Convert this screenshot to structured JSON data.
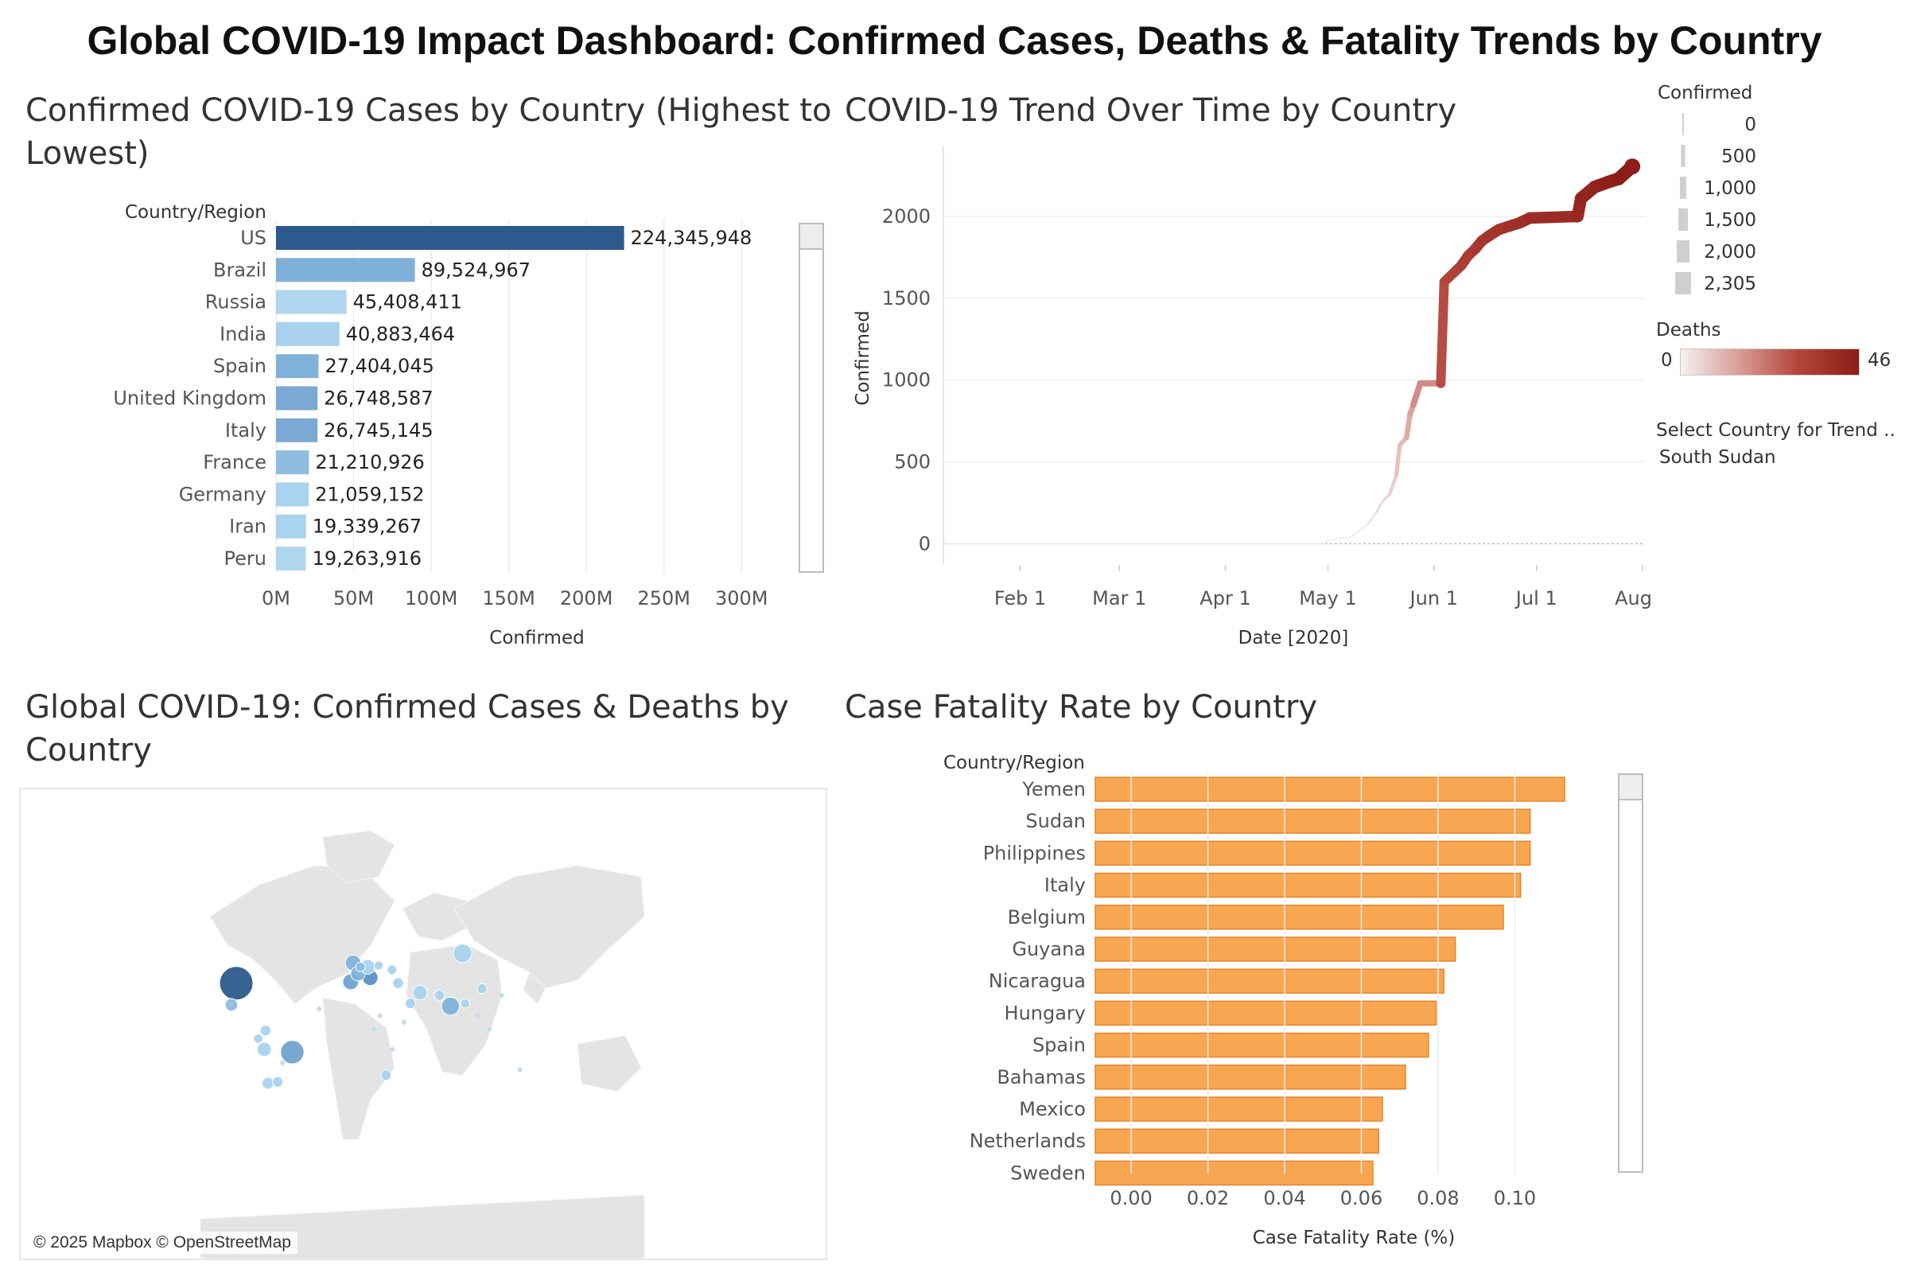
{
  "dashboard": {
    "title": "Global COVID-19 Impact Dashboard: Confirmed Cases, Deaths & Fatality Trends by Country"
  },
  "confirmed_panel": {
    "title_line1": "Confirmed COVID-19 Cases by Country (Highest to",
    "title_line2": "Lowest)"
  },
  "trend_panel": {
    "title": "COVID-19 Trend Over Time by Country"
  },
  "map_panel": {
    "title_line1": "Global COVID-19: Confirmed Cases & Deaths by",
    "title_line2": "Country",
    "attribution": "© 2025 Mapbox © OpenStreetMap",
    "bubbles": [
      {
        "lon": -98,
        "lat": 39,
        "confirmed": 224345948,
        "color": "#2d5a8c"
      },
      {
        "lon": -52,
        "lat": -12,
        "confirmed": 89524967,
        "color": "#6fa3d0"
      },
      {
        "lon": 88,
        "lat": 61,
        "confirmed": 45408411,
        "color": "#a9d3ee"
      },
      {
        "lon": 78,
        "lat": 22,
        "confirmed": 40883464,
        "color": "#7eb3dc"
      },
      {
        "lon": -4,
        "lat": 40,
        "confirmed": 27404045,
        "color": "#6fa3d0"
      },
      {
        "lon": -2,
        "lat": 54,
        "confirmed": 26748587,
        "color": "#7eb3dc"
      },
      {
        "lon": 12,
        "lat": 43,
        "confirmed": 26745145,
        "color": "#5c92c4"
      },
      {
        "lon": 2,
        "lat": 46,
        "confirmed": 21210926,
        "color": "#7eb3dc"
      },
      {
        "lon": 10,
        "lat": 51,
        "confirmed": 21059152,
        "color": "#a9d3ee"
      },
      {
        "lon": 53,
        "lat": 32,
        "confirmed": 19339267,
        "color": "#a9d3ee"
      },
      {
        "lon": -75,
        "lat": -10,
        "confirmed": 19263916,
        "color": "#a9d3ee"
      },
      {
        "lon": -102,
        "lat": 23,
        "confirmed": 12000000,
        "color": "#8dbde3"
      },
      {
        "lon": -72,
        "lat": -35,
        "confirmed": 9000000,
        "color": "#a9d3ee"
      },
      {
        "lon": -74,
        "lat": 4,
        "confirmed": 6000000,
        "color": "#a9d3ee"
      },
      {
        "lon": -64,
        "lat": -34,
        "confirmed": 5000000,
        "color": "#a9d3ee"
      },
      {
        "lon": 35,
        "lat": 39,
        "confirmed": 6000000,
        "color": "#a9d3ee"
      },
      {
        "lon": 45,
        "lat": 24,
        "confirmed": 5000000,
        "color": "#a9d3ee"
      },
      {
        "lon": 69,
        "lat": 30,
        "confirmed": 4500000,
        "color": "#a9d3ee"
      },
      {
        "lon": 25,
        "lat": -29,
        "confirmed": 5000000,
        "color": "#a9d3ee"
      },
      {
        "lon": 104,
        "lat": 35,
        "confirmed": 3500000,
        "color": "#a9d3ee"
      },
      {
        "lon": 30,
        "lat": 49,
        "confirmed": 3000000,
        "color": "#a9d3ee"
      },
      {
        "lon": -80,
        "lat": -2,
        "confirmed": 2500000,
        "color": "#a9d3ee"
      },
      {
        "lon": 4,
        "lat": 51,
        "confirmed": 3000000,
        "color": "#8dbde3"
      },
      {
        "lon": 19,
        "lat": 52,
        "confirmed": 2500000,
        "color": "#a9d3ee"
      },
      {
        "lon": 90,
        "lat": 24,
        "confirmed": 2500000,
        "color": "#a9d3ee"
      }
    ]
  },
  "cfr_panel": {
    "title": "Case Fatality Rate by Country"
  },
  "legend": {
    "size_title": "Confirmed",
    "size_labels": [
      "0",
      "500",
      "1,000",
      "1,500",
      "2,000",
      "2,305"
    ],
    "color_title": "Deaths",
    "color_min": "0",
    "color_max": "46",
    "filter_title": "Select Country for Trend ..",
    "filter_value": "South Sudan"
  },
  "colors": {
    "us_bar": "#2d5a8c",
    "bar_light": "#b0d6ef",
    "bar_mid": "#8dbde0",
    "bar_medium": "#80b1d8",
    "bar_brazil": "#7fb0d9",
    "cfr_bar": "#f8a652",
    "cfr_edge": "#e4862a",
    "trend_dark": "#8c1d18"
  },
  "chart_data": [
    {
      "id": "confirmed",
      "type": "bar",
      "orientation": "horizontal",
      "dim_label": "Country/Region",
      "xlabel": "Confirmed",
      "xlim": [
        0,
        325000000
      ],
      "xticks": [
        0,
        50000000,
        100000000,
        150000000,
        200000000,
        250000000,
        300000000
      ],
      "xtick_labels": [
        "0M",
        "50M",
        "100M",
        "150M",
        "200M",
        "250M",
        "300M"
      ],
      "categories": [
        "US",
        "Brazil",
        "Russia",
        "India",
        "Spain",
        "United Kingdom",
        "Italy",
        "France",
        "Germany",
        "Iran",
        "Peru"
      ],
      "values": [
        224345948,
        89524967,
        45408411,
        40883464,
        27404045,
        26748587,
        26745145,
        21210926,
        21059152,
        19339267,
        19263916
      ],
      "value_labels": [
        "224,345,948",
        "89,524,967",
        "45,408,411",
        "40,883,464",
        "27,404,045",
        "26,748,587",
        "26,745,145",
        "21,210,926",
        "21,059,152",
        "19,339,267",
        "19,263,916"
      ],
      "bar_colors": [
        "#2d5a8c",
        "#7fb0d9",
        "#b0d6ef",
        "#a9d1ee",
        "#80b1d8",
        "#7ba9d3",
        "#7ba9d3",
        "#8dbde0",
        "#a9d3ee",
        "#a9d3ee",
        "#b0d6ef"
      ],
      "grid": true
    },
    {
      "id": "trend",
      "type": "line",
      "xlabel": "Date [2020]",
      "ylabel": "Confirmed",
      "ylim": [
        -110,
        2350
      ],
      "yticks": [
        0,
        500,
        1000,
        1500,
        2000
      ],
      "xlim": [
        "2020-01-10",
        "2020-08-01"
      ],
      "xticks": [
        "2020-02-01",
        "2020-03-01",
        "2020-04-01",
        "2020-05-01",
        "2020-06-01",
        "2020-07-01",
        "2020-08-01"
      ],
      "xtick_labels": [
        "Feb 1",
        "Mar 1",
        "Apr 1",
        "May 1",
        "Jun 1",
        "Jul 1",
        "Aug 1"
      ],
      "zero_reference_line": true,
      "x": [
        "2020-01-10",
        "2020-04-29",
        "2020-05-01",
        "2020-05-05",
        "2020-05-08",
        "2020-05-11",
        "2020-05-13",
        "2020-05-15",
        "2020-05-17",
        "2020-05-19",
        "2020-05-21",
        "2020-05-22",
        "2020-05-24",
        "2020-05-25",
        "2020-05-26",
        "2020-05-28",
        "2020-06-03",
        "2020-06-04",
        "2020-06-05",
        "2020-06-07",
        "2020-06-09",
        "2020-06-11",
        "2020-06-13",
        "2020-06-15",
        "2020-06-17",
        "2020-06-20",
        "2020-06-23",
        "2020-06-26",
        "2020-06-29",
        "2020-07-13",
        "2020-07-14",
        "2020-07-18",
        "2020-07-22",
        "2020-07-25",
        "2020-07-29"
      ],
      "values": [
        0,
        0,
        20,
        35,
        45,
        90,
        130,
        185,
        260,
        300,
        420,
        600,
        650,
        790,
        850,
        980,
        980,
        1600,
        1620,
        1660,
        1700,
        1760,
        1800,
        1850,
        1880,
        1920,
        1940,
        1960,
        1990,
        2000,
        2110,
        2180,
        2210,
        2230,
        2305
      ],
      "deaths": [
        0,
        0,
        0,
        0,
        0,
        1,
        1,
        2,
        3,
        4,
        6,
        8,
        9,
        12,
        14,
        18,
        18,
        29,
        30,
        31,
        32,
        33,
        34,
        35,
        36,
        37,
        37,
        38,
        39,
        40,
        42,
        43,
        44,
        45,
        46
      ],
      "series_name": "South Sudan",
      "grid": true
    },
    {
      "id": "cfr",
      "type": "bar",
      "orientation": "horizontal",
      "dim_label": "Country/Region",
      "xlabel": "Case Fatality Rate (%)",
      "xlim": [
        -0.005,
        0.125
      ],
      "xticks": [
        0.0,
        0.02,
        0.04,
        0.06,
        0.08,
        0.1
      ],
      "xtick_labels": [
        "0.00",
        "0.02",
        "0.04",
        "0.06",
        "0.08",
        "0.10"
      ],
      "categories": [
        "Yemen",
        "Sudan",
        "Philippines",
        "Italy",
        "Belgium",
        "Guyana",
        "Nicaragua",
        "Hungary",
        "Spain",
        "Bahamas",
        "Mexico",
        "Netherlands",
        "Sweden"
      ],
      "values": [
        0.113,
        0.104,
        0.104,
        0.1015,
        0.097,
        0.0845,
        0.0815,
        0.0795,
        0.0775,
        0.0715,
        0.0655,
        0.0645,
        0.063
      ],
      "grid": true
    }
  ]
}
